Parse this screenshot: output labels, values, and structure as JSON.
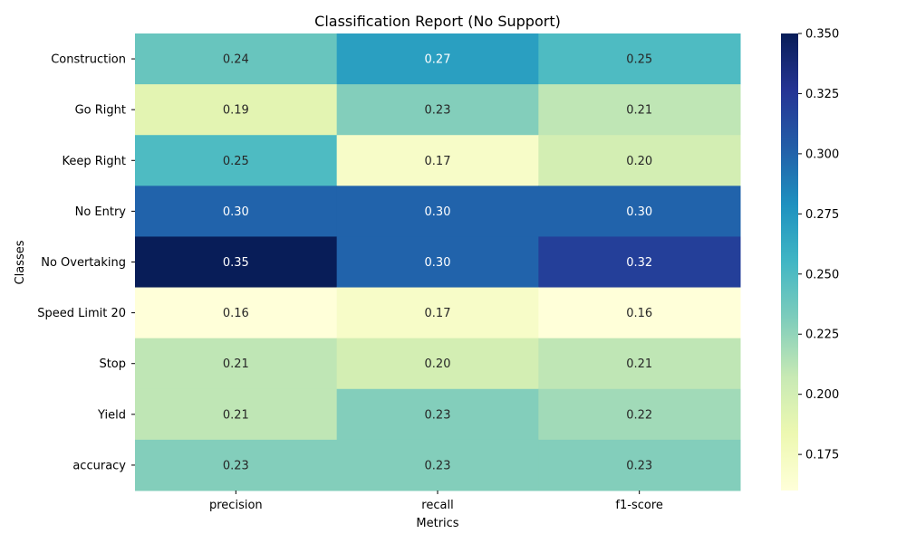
{
  "chart_data": {
    "type": "heatmap",
    "title": "Classification Report (No Support)",
    "xlabel": "Metrics",
    "ylabel": "Classes",
    "columns": [
      "precision",
      "recall",
      "f1-score"
    ],
    "rows": [
      "Construction",
      "Go Right",
      "Keep Right",
      "No Entry",
      "No Overtaking",
      "Speed Limit 20",
      "Stop",
      "Yield",
      "accuracy"
    ],
    "values": [
      [
        0.24,
        0.27,
        0.25
      ],
      [
        0.19,
        0.23,
        0.21
      ],
      [
        0.25,
        0.17,
        0.2
      ],
      [
        0.3,
        0.3,
        0.3
      ],
      [
        0.35,
        0.3,
        0.32
      ],
      [
        0.16,
        0.17,
        0.16
      ],
      [
        0.21,
        0.2,
        0.21
      ],
      [
        0.21,
        0.23,
        0.22
      ],
      [
        0.23,
        0.23,
        0.23
      ]
    ],
    "labels": [
      [
        "0.24",
        "0.27",
        "0.25"
      ],
      [
        "0.19",
        "0.23",
        "0.21"
      ],
      [
        "0.25",
        "0.17",
        "0.20"
      ],
      [
        "0.30",
        "0.30",
        "0.30"
      ],
      [
        "0.35",
        "0.30",
        "0.32"
      ],
      [
        "0.16",
        "0.17",
        "0.16"
      ],
      [
        "0.21",
        "0.20",
        "0.21"
      ],
      [
        "0.21",
        "0.23",
        "0.22"
      ],
      [
        "0.23",
        "0.23",
        "0.23"
      ]
    ],
    "colormap": "YlGnBu",
    "vmin": 0.16,
    "vmax": 0.35,
    "colorbar_ticks": [
      "0.175",
      "0.200",
      "0.225",
      "0.250",
      "0.275",
      "0.300",
      "0.325",
      "0.350"
    ],
    "grid": false,
    "legend": "colorbar-right"
  }
}
